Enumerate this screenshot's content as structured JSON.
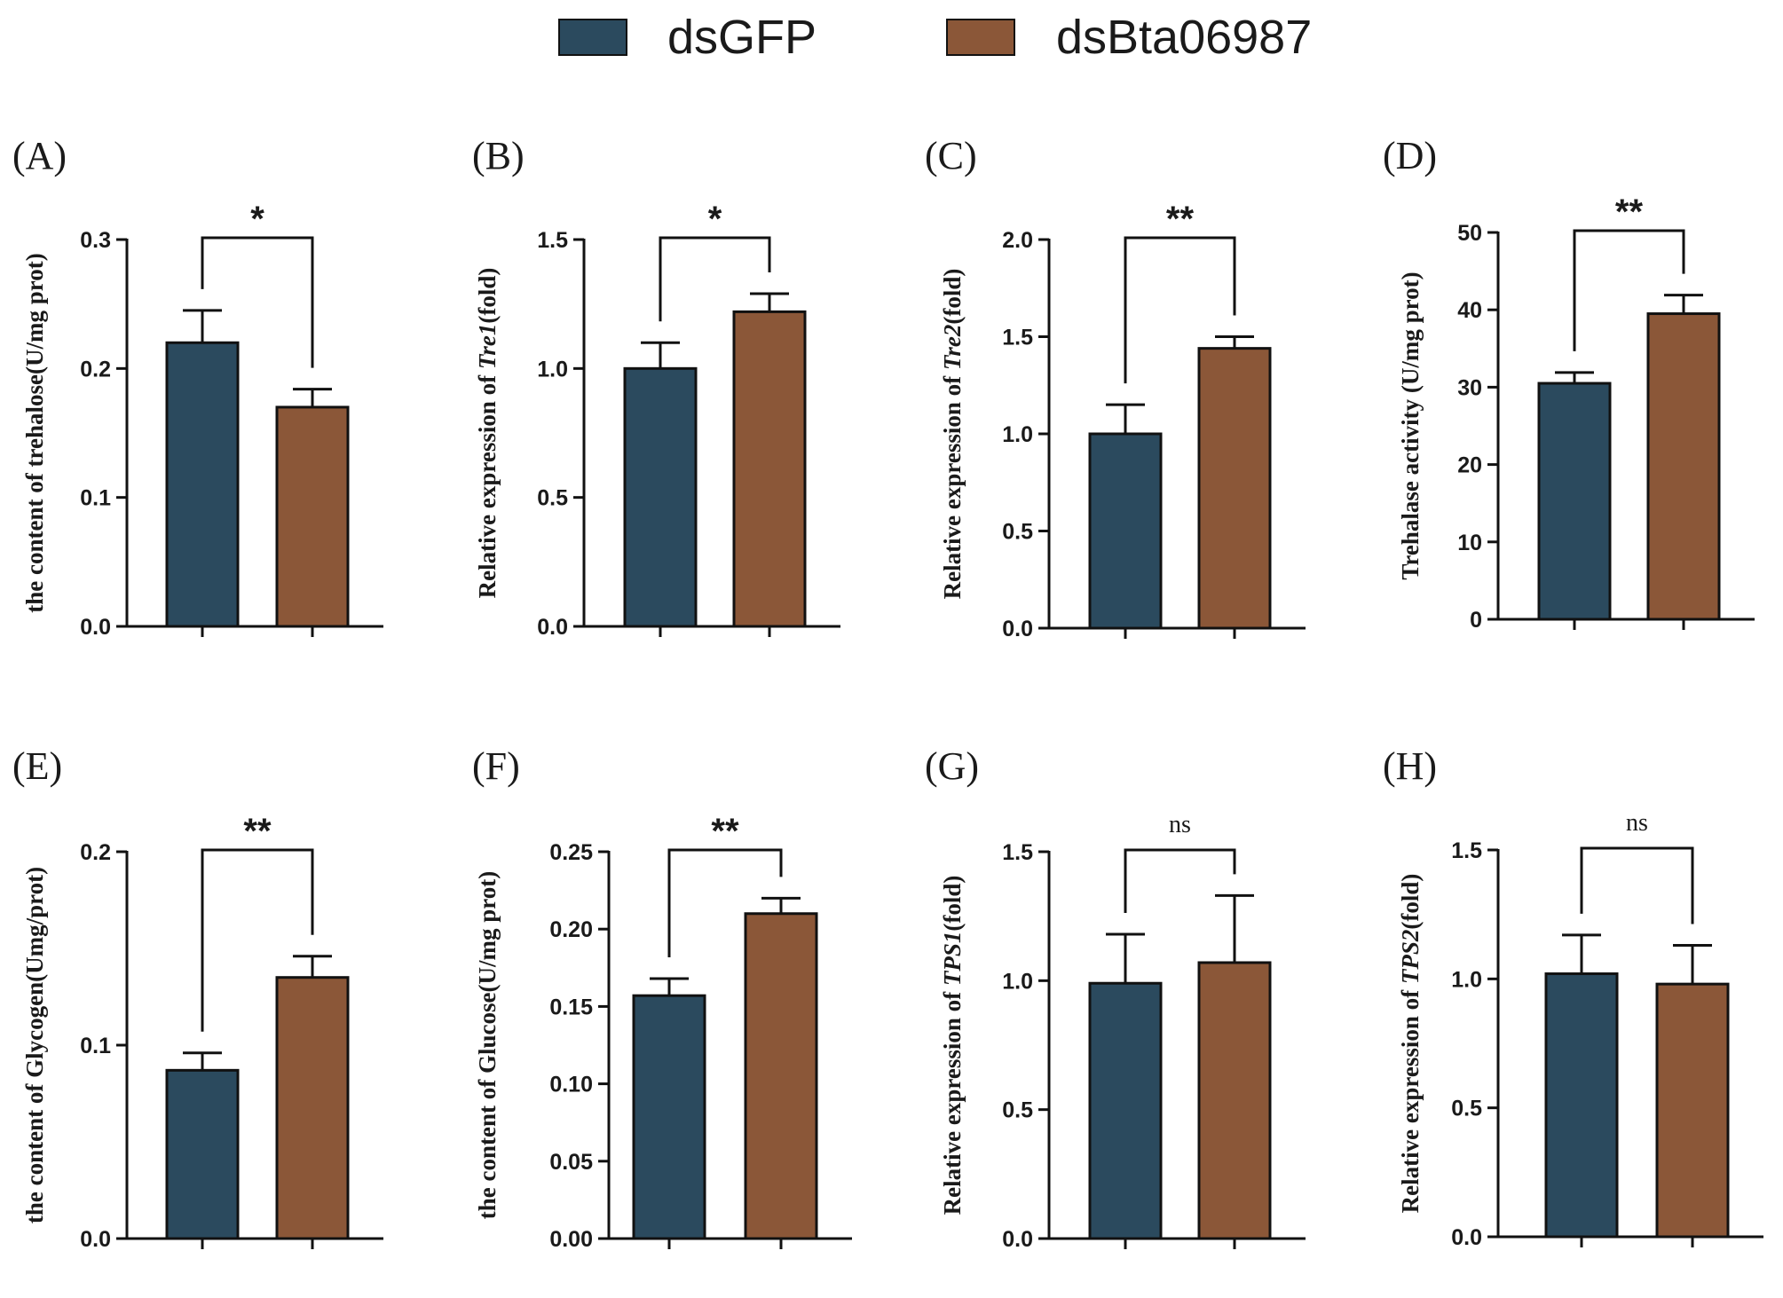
{
  "legend": {
    "items": [
      {
        "label": "dsGFP",
        "color": "#2b4a5e"
      },
      {
        "label": "dsBta06987",
        "color": "#8b5738"
      }
    ]
  },
  "chart_data": [
    {
      "panel": "(A)",
      "type": "bar",
      "categories": [
        "dsGFP",
        "dsBta06987"
      ],
      "values": [
        0.22,
        0.17
      ],
      "errors": [
        0.025,
        0.014
      ],
      "ylim": [
        0,
        0.3
      ],
      "yticks": [
        0.0,
        0.1,
        0.2,
        0.3
      ],
      "tick_labels": [
        "0.0",
        "0.1",
        "0.2",
        "0.3"
      ],
      "ylabel": "the content of trehalose(U/mg prot)",
      "significance": "*"
    },
    {
      "panel": "(B)",
      "type": "bar",
      "categories": [
        "dsGFP",
        "dsBta06987"
      ],
      "values": [
        1.0,
        1.22
      ],
      "errors": [
        0.1,
        0.07
      ],
      "ylim": [
        0,
        1.5
      ],
      "yticks": [
        0.0,
        0.5,
        1.0,
        1.5
      ],
      "tick_labels": [
        "0.0",
        "0.5",
        "1.0",
        "1.5"
      ],
      "ylabel": "Relative expression of Tre1(fold)",
      "ylabel_parts": [
        "Relative expression of ",
        "Tre1",
        "(fold)"
      ],
      "significance": "*"
    },
    {
      "panel": "(C)",
      "type": "bar",
      "categories": [
        "dsGFP",
        "dsBta06987"
      ],
      "values": [
        1.0,
        1.44
      ],
      "errors": [
        0.15,
        0.06
      ],
      "ylim": [
        0,
        2.0
      ],
      "yticks": [
        0.0,
        0.5,
        1.0,
        1.5,
        2.0
      ],
      "tick_labels": [
        "0.0",
        "0.5",
        "1.0",
        "1.5",
        "2.0"
      ],
      "ylabel": "Relative expression of Tre2(fold)",
      "ylabel_parts": [
        "Relative expression of ",
        "Tre2",
        "(fold)"
      ],
      "significance": "**"
    },
    {
      "panel": "(D)",
      "type": "bar",
      "categories": [
        "dsGFP",
        "dsBta06987"
      ],
      "values": [
        30.5,
        39.5
      ],
      "errors": [
        1.4,
        2.4
      ],
      "ylim": [
        0,
        50
      ],
      "yticks": [
        0,
        10,
        20,
        30,
        40,
        50
      ],
      "tick_labels": [
        "0",
        "10",
        "20",
        "30",
        "40",
        "50"
      ],
      "ylabel": "Trehalase activity (U/mg prot)",
      "significance": "**"
    },
    {
      "panel": "(E)",
      "type": "bar",
      "categories": [
        "dsGFP",
        "dsBta06987"
      ],
      "values": [
        0.087,
        0.135
      ],
      "errors": [
        0.009,
        0.011
      ],
      "ylim": [
        0,
        0.2
      ],
      "yticks": [
        0.0,
        0.1,
        0.2
      ],
      "tick_labels": [
        "0.0",
        "0.1",
        "0.2"
      ],
      "ylabel": "the content of Glycogen(Umg/prot)",
      "significance": "**"
    },
    {
      "panel": "(F)",
      "type": "bar",
      "categories": [
        "dsGFP",
        "dsBta06987"
      ],
      "values": [
        0.157,
        0.21
      ],
      "errors": [
        0.011,
        0.01
      ],
      "ylim": [
        0,
        0.25
      ],
      "yticks": [
        0.0,
        0.05,
        0.1,
        0.15,
        0.2,
        0.25
      ],
      "tick_labels": [
        "0.00",
        "0.05",
        "0.10",
        "0.15",
        "0.20",
        "0.25"
      ],
      "ylabel": "the content of Glucose(U/mg prot)",
      "significance": "**"
    },
    {
      "panel": "(G)",
      "type": "bar",
      "categories": [
        "dsGFP",
        "dsBta06987"
      ],
      "values": [
        0.99,
        1.07
      ],
      "errors": [
        0.19,
        0.26
      ],
      "ylim": [
        0,
        1.5
      ],
      "yticks": [
        0.0,
        0.5,
        1.0,
        1.5
      ],
      "tick_labels": [
        "0.0",
        "0.5",
        "1.0",
        "1.5"
      ],
      "ylabel": "Relative expression of TPS1(fold)",
      "ylabel_parts": [
        "Relative expression of ",
        "TPS1",
        "(fold)"
      ],
      "significance": "ns"
    },
    {
      "panel": "(H)",
      "type": "bar",
      "categories": [
        "dsGFP",
        "dsBta06987"
      ],
      "values": [
        1.02,
        0.98
      ],
      "errors": [
        0.15,
        0.15
      ],
      "ylim": [
        0,
        1.5
      ],
      "yticks": [
        0.0,
        0.5,
        1.0,
        1.5
      ],
      "tick_labels": [
        "0.0",
        "0.5",
        "1.0",
        "1.5"
      ],
      "ylabel": "Relative expression of TPS2(fold)",
      "ylabel_parts": [
        "Relative expression of ",
        "TPS2",
        "(fold)"
      ],
      "significance": "ns"
    }
  ]
}
